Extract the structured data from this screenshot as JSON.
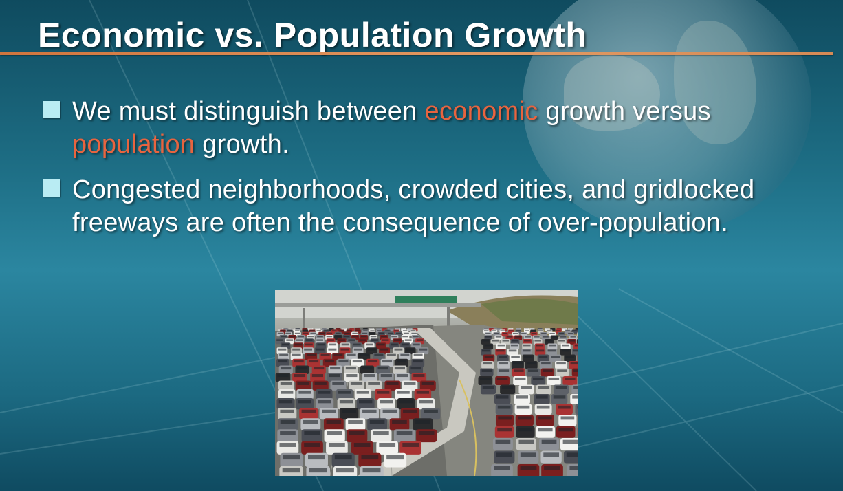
{
  "slide": {
    "title": "Economic vs. Population Growth",
    "bullets": [
      {
        "parts": [
          {
            "text": "We must distinguish between "
          },
          {
            "text": "economic",
            "highlight": true
          },
          {
            "text": " growth versus "
          },
          {
            "text": "population",
            "highlight": true
          },
          {
            "text": " growth."
          }
        ]
      },
      {
        "parts": [
          {
            "text": "Congested neighborhoods, crowded cities, and gridlocked freeways are often the consequence of over-population."
          }
        ]
      }
    ],
    "image": {
      "subject": "gridlocked-freeway-photo"
    }
  },
  "colors": {
    "background": "#1e6f86",
    "title_text": "#ffffff",
    "title_rule": "#d0753e",
    "bullet_marker": "#b9ecf3",
    "highlight": "#e8643f"
  }
}
